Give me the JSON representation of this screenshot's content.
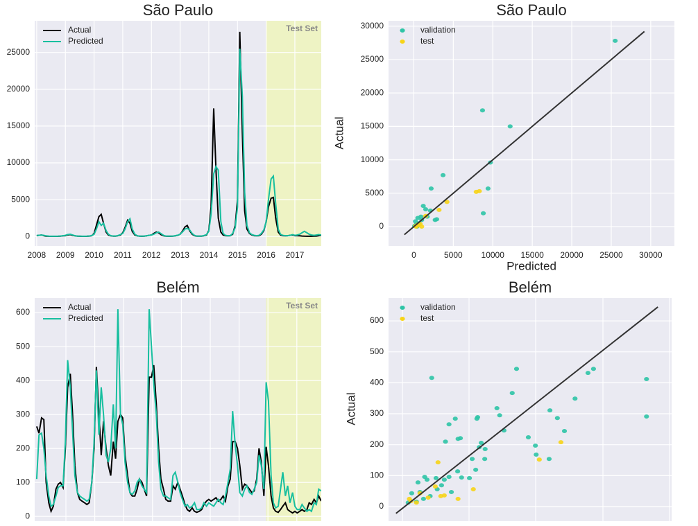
{
  "chart_data": [
    {
      "type": "line",
      "title": "São Paulo",
      "legend": "upper left",
      "x": [
        2008,
        2008.08,
        2008.17,
        2008.25,
        2008.33,
        2008.42,
        2008.5,
        2008.58,
        2008.67,
        2008.75,
        2008.83,
        2008.92,
        2009,
        2009.08,
        2009.17,
        2009.25,
        2009.33,
        2009.42,
        2009.5,
        2009.58,
        2009.67,
        2009.75,
        2009.83,
        2009.92,
        2010,
        2010.08,
        2010.17,
        2010.25,
        2010.33,
        2010.42,
        2010.5,
        2010.58,
        2010.67,
        2010.75,
        2010.83,
        2010.92,
        2011,
        2011.08,
        2011.17,
        2011.25,
        2011.33,
        2011.42,
        2011.5,
        2011.58,
        2011.67,
        2011.75,
        2011.83,
        2011.92,
        2012,
        2012.08,
        2012.17,
        2012.25,
        2012.33,
        2012.42,
        2012.5,
        2012.58,
        2012.67,
        2012.75,
        2012.83,
        2012.92,
        2013,
        2013.08,
        2013.17,
        2013.25,
        2013.33,
        2013.42,
        2013.5,
        2013.58,
        2013.67,
        2013.75,
        2013.83,
        2013.92,
        2014,
        2014.08,
        2014.17,
        2014.25,
        2014.33,
        2014.42,
        2014.5,
        2014.58,
        2014.67,
        2014.75,
        2014.83,
        2014.92,
        2015,
        2015.08,
        2015.17,
        2015.25,
        2015.33,
        2015.42,
        2015.5,
        2015.58,
        2015.67,
        2015.75,
        2015.83,
        2015.92,
        2016,
        2016.08,
        2016.17,
        2016.25,
        2016.33,
        2016.42,
        2016.5,
        2016.58,
        2016.67,
        2016.75,
        2016.83,
        2016.92,
        2017,
        2017.08,
        2017.17,
        2017.25,
        2017.33,
        2017.42,
        2017.5,
        2017.58,
        2017.67,
        2017.75,
        2017.83,
        2017.92
      ],
      "series": [
        {
          "name": "Actual",
          "color": "#000000",
          "values": [
            100,
            150,
            200,
            100,
            50,
            30,
            20,
            20,
            20,
            30,
            50,
            80,
            100,
            200,
            250,
            150,
            80,
            40,
            30,
            20,
            20,
            30,
            50,
            100,
            400,
            1500,
            2700,
            3000,
            1800,
            600,
            200,
            80,
            50,
            50,
            100,
            200,
            500,
            1200,
            2200,
            1800,
            700,
            200,
            80,
            40,
            30,
            40,
            80,
            150,
            200,
            400,
            600,
            500,
            250,
            100,
            50,
            30,
            30,
            40,
            80,
            150,
            300,
            700,
            1300,
            1500,
            800,
            300,
            100,
            50,
            40,
            50,
            100,
            200,
            800,
            4000,
            17400,
            9000,
            2500,
            600,
            200,
            100,
            80,
            100,
            300,
            1500,
            5000,
            27800,
            14000,
            3500,
            1000,
            400,
            200,
            100,
            80,
            100,
            300,
            800,
            2000,
            4000,
            5200,
            5300,
            2500,
            600,
            200,
            100,
            80,
            100,
            150,
            200,
            100,
            100,
            80,
            60,
            40,
            30,
            30,
            30,
            40,
            60,
            100,
            150
          ]
        },
        {
          "name": "Predicted",
          "color": "#17bf9f",
          "values": [
            150,
            150,
            200,
            150,
            80,
            50,
            30,
            30,
            30,
            40,
            60,
            100,
            150,
            250,
            300,
            200,
            100,
            50,
            40,
            30,
            30,
            40,
            60,
            120,
            300,
            1000,
            2000,
            1500,
            1800,
            800,
            300,
            100,
            60,
            60,
            120,
            250,
            400,
            1000,
            2000,
            2400,
            1000,
            300,
            100,
            50,
            40,
            50,
            100,
            150,
            200,
            300,
            500,
            600,
            400,
            150,
            60,
            40,
            40,
            50,
            100,
            180,
            300,
            600,
            1000,
            1100,
            900,
            400,
            150,
            60,
            50,
            60,
            120,
            250,
            700,
            3000,
            8500,
            9500,
            9000,
            2000,
            400,
            150,
            100,
            100,
            400,
            1200,
            4000,
            25500,
            19000,
            6000,
            1500,
            500,
            250,
            150,
            100,
            150,
            400,
            900,
            2000,
            5000,
            7800,
            8200,
            4500,
            1000,
            300,
            150,
            100,
            100,
            150,
            250,
            150,
            200,
            300,
            500,
            700,
            500,
            300,
            200,
            150,
            200,
            250,
            200
          ]
        }
      ],
      "test_span": {
        "label": "Test Set",
        "x": [
          2016,
          2017.92
        ],
        "color": "#eef3c4"
      },
      "xlim": [
        2007.93,
        2017.92
      ],
      "ylim": [
        -1300,
        29300
      ],
      "xticks": [
        2008,
        2009,
        2010,
        2011,
        2012,
        2013,
        2014,
        2015,
        2016,
        2017
      ],
      "yticks": [
        0,
        5000,
        10000,
        15000,
        20000,
        25000
      ],
      "grid": true
    },
    {
      "type": "scatter",
      "title": "São Paulo",
      "xlabel": "Predicted",
      "ylabel": "Actual",
      "legend": "upper left",
      "series": [
        {
          "name": "validation",
          "color": "#2ec4a6",
          "x": [
            25500,
            8700,
            12200,
            9700,
            3700,
            2200,
            9400,
            8800,
            1200,
            1500,
            2100,
            2700,
            500,
            900,
            200,
            300,
            100,
            600,
            1000,
            1700,
            2900,
            400,
            200
          ],
          "y": [
            27800,
            17400,
            15000,
            9600,
            7700,
            5700,
            5700,
            2000,
            3100,
            2600,
            2400,
            1000,
            1300,
            1500,
            800,
            300,
            100,
            500,
            1000,
            1500,
            1100,
            0,
            200
          ]
        },
        {
          "name": "test",
          "color": "#f7d417",
          "x": [
            7900,
            8300,
            4200,
            3200,
            1500,
            800,
            600,
            300,
            1000,
            200,
            500
          ],
          "y": [
            5200,
            5300,
            3700,
            2500,
            1600,
            400,
            200,
            0,
            0,
            100,
            300
          ]
        }
      ],
      "reference_line": {
        "x": [
          -1200,
          29200
        ],
        "y": [
          -1200,
          29200
        ],
        "color": "#333333"
      },
      "xlim": [
        -3200,
        33000
      ],
      "ylim": [
        -2900,
        30800
      ],
      "xticks": [
        0,
        5000,
        10000,
        15000,
        20000,
        25000,
        30000
      ],
      "yticks": [
        0,
        5000,
        10000,
        15000,
        20000,
        25000,
        30000
      ],
      "grid": true
    },
    {
      "type": "line",
      "title": "Belém",
      "legend": "upper left",
      "x": [
        2008,
        2008.08,
        2008.17,
        2008.25,
        2008.33,
        2008.42,
        2008.5,
        2008.58,
        2008.67,
        2008.75,
        2008.83,
        2008.92,
        2009,
        2009.08,
        2009.17,
        2009.25,
        2009.33,
        2009.42,
        2009.5,
        2009.58,
        2009.67,
        2009.75,
        2009.83,
        2009.92,
        2010,
        2010.08,
        2010.17,
        2010.25,
        2010.33,
        2010.42,
        2010.5,
        2010.58,
        2010.67,
        2010.75,
        2010.83,
        2010.92,
        2011,
        2011.08,
        2011.17,
        2011.25,
        2011.33,
        2011.42,
        2011.5,
        2011.58,
        2011.67,
        2011.75,
        2011.83,
        2011.92,
        2012,
        2012.08,
        2012.17,
        2012.25,
        2012.33,
        2012.42,
        2012.5,
        2012.58,
        2012.67,
        2012.75,
        2012.83,
        2012.92,
        2013,
        2013.08,
        2013.17,
        2013.25,
        2013.33,
        2013.42,
        2013.5,
        2013.58,
        2013.67,
        2013.75,
        2013.83,
        2013.92,
        2014,
        2014.08,
        2014.17,
        2014.25,
        2014.33,
        2014.42,
        2014.5,
        2014.58,
        2014.67,
        2014.75,
        2014.83,
        2014.92,
        2015,
        2015.08,
        2015.17,
        2015.25,
        2015.33,
        2015.42,
        2015.5,
        2015.58,
        2015.67,
        2015.75,
        2015.83,
        2015.92,
        2016,
        2016.08,
        2016.17,
        2016.25,
        2016.33,
        2016.42,
        2016.5,
        2016.58,
        2016.67,
        2016.75,
        2016.83,
        2016.92,
        2017,
        2017.08,
        2017.17,
        2017.25,
        2017.33,
        2017.42,
        2017.5,
        2017.58,
        2017.67,
        2017.75,
        2017.83,
        2017.92
      ],
      "series": [
        {
          "name": "Actual",
          "color": "#000000",
          "values": [
            265,
            245,
            290,
            285,
            100,
            40,
            15,
            30,
            80,
            95,
            100,
            85,
            200,
            380,
            420,
            300,
            150,
            70,
            50,
            45,
            40,
            35,
            40,
            100,
            200,
            440,
            300,
            180,
            280,
            200,
            150,
            120,
            220,
            170,
            280,
            300,
            290,
            180,
            120,
            70,
            60,
            60,
            80,
            110,
            100,
            80,
            60,
            410,
            410,
            445,
            330,
            200,
            110,
            80,
            50,
            45,
            45,
            90,
            80,
            100,
            80,
            60,
            35,
            20,
            15,
            25,
            15,
            12,
            15,
            20,
            35,
            45,
            50,
            45,
            50,
            55,
            45,
            50,
            60,
            45,
            90,
            110,
            220,
            220,
            200,
            150,
            80,
            95,
            90,
            80,
            70,
            75,
            110,
            200,
            160,
            60,
            205,
            150,
            60,
            25,
            15,
            12,
            20,
            30,
            40,
            20,
            15,
            10,
            15,
            10,
            15,
            20,
            15,
            20,
            40,
            35,
            50,
            40,
            60,
            45
          ]
        },
        {
          "name": "Predicted",
          "color": "#17bf9f",
          "values": [
            110,
            240,
            245,
            200,
            120,
            60,
            30,
            35,
            60,
            85,
            90,
            90,
            220,
            460,
            380,
            250,
            120,
            70,
            60,
            55,
            50,
            45,
            50,
            100,
            220,
            430,
            240,
            380,
            300,
            180,
            160,
            200,
            330,
            200,
            610,
            300,
            270,
            160,
            100,
            70,
            65,
            75,
            100,
            110,
            90,
            80,
            70,
            610,
            500,
            390,
            300,
            160,
            80,
            60,
            60,
            55,
            50,
            120,
            130,
            100,
            70,
            50,
            30,
            35,
            25,
            30,
            40,
            20,
            20,
            25,
            40,
            30,
            40,
            35,
            30,
            40,
            50,
            40,
            35,
            60,
            100,
            140,
            310,
            210,
            150,
            70,
            60,
            80,
            90,
            70,
            65,
            80,
            100,
            180,
            150,
            80,
            395,
            340,
            120,
            40,
            25,
            30,
            80,
            130,
            60,
            90,
            40,
            70,
            30,
            20,
            20,
            35,
            25,
            15,
            20,
            15,
            40,
            35,
            80,
            75
          ]
        }
      ],
      "test_span": {
        "label": "Test Set",
        "x": [
          2016,
          2017.92
        ],
        "color": "#eef3c4"
      },
      "xlim": [
        2007.93,
        2017.92
      ],
      "ylim": [
        -14,
        643
      ],
      "yticks": [
        0,
        100,
        200,
        300,
        400,
        500,
        600
      ],
      "grid": true
    },
    {
      "type": "scatter",
      "title": "Belém",
      "ylabel": "Actual",
      "legend": "upper left",
      "series": [
        {
          "name": "validation",
          "color": "#2ec4a6",
          "x": [
            69,
            616,
            616,
            481,
            467,
            434,
            389,
            370,
            407,
            368,
            335,
            333,
            315,
            285,
            274,
            253,
            235,
            242,
            186,
            184,
            142,
            136,
            129,
            113,
            104,
            195,
            190,
            205,
            172,
            204,
            181,
            165,
            135,
            145,
            113,
            101,
            80,
            57,
            51,
            34,
            39,
            18,
            30,
            65,
            94,
            48,
            9,
            119,
            83
          ],
          "y": [
            416,
            412,
            291,
            445,
            432,
            349,
            286,
            311,
            244,
            154,
            168,
            197,
            224,
            445,
            367,
            246,
            318,
            295,
            289,
            284,
            221,
            219,
            284,
            266,
            210,
            206,
            192,
            186,
            154,
            154,
            119,
            92,
            114,
            94,
            96,
            87,
            92,
            87,
            96,
            78,
            47,
            43,
            16,
            34,
            69,
            25,
            13,
            47,
            56
          ]
        },
        {
          "name": "test",
          "color": "#f7d417",
          "x": [
            398,
            343,
            175,
            136,
            85,
            78,
            92,
            60,
            30,
            16,
            12,
            39,
            101
          ],
          "y": [
            208,
            152,
            56,
            25,
            143,
            65,
            34,
            29,
            13,
            18,
            25,
            43,
            36
          ]
        }
      ],
      "reference_line": {
        "x": [
          -22,
          645
        ],
        "y": [
          -22,
          645
        ],
        "color": "#333333"
      },
      "xlim": [
        -41,
        680
      ],
      "ylim": [
        -47,
        674
      ],
      "yticks": [
        0,
        100,
        200,
        300,
        400,
        500,
        600
      ],
      "grid": true
    }
  ]
}
